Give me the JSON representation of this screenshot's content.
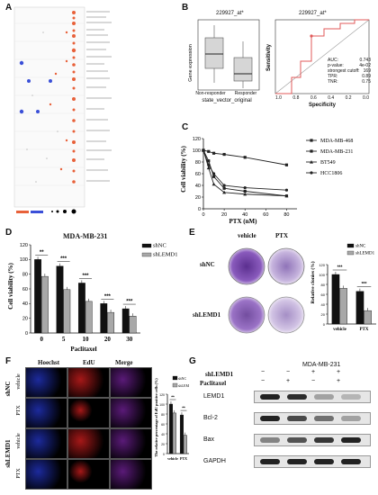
{
  "panels": {
    "A": "A",
    "B": "B",
    "C": "C",
    "D": "D",
    "E": "E",
    "F": "F",
    "G": "G"
  },
  "panelB": {
    "box_title": "229927_at*",
    "roc_title": "229927_at*",
    "ylabel": "Gene expression",
    "xgroup1": "Non-responder",
    "xgroup2": "Responder",
    "xlabel": "state_vector_original",
    "roc_ylabel": "Sensitivity",
    "roc_xlabel": "Specificity",
    "roc_xticks": [
      "1.0",
      "0.8",
      "0.6",
      "0.4",
      "0.2",
      "0.0"
    ],
    "stats": [
      {
        "k": "AUC:",
        "v": "0.743"
      },
      {
        "k": "p-value:",
        "v": "4e-02"
      },
      {
        "k": "strongest cutoff:",
        "v": "169"
      },
      {
        "k": "TPR:",
        "v": "0.89"
      },
      {
        "k": "TNR:",
        "v": "0.75"
      }
    ]
  },
  "chart_data": [
    {
      "type": "line",
      "panel": "C",
      "xlabel": "PTX (nM)",
      "ylabel": "Cell viability (%)",
      "x": [
        0,
        5,
        10,
        20,
        40,
        80
      ],
      "xticks": [
        0,
        20,
        40,
        60,
        80
      ],
      "yticks": [
        0,
        20,
        40,
        60,
        80,
        100,
        120
      ],
      "ylim": [
        0,
        120
      ],
      "series": [
        {
          "name": "MDA-MB-468",
          "values": [
            100,
            98,
            95,
            93,
            88,
            75
          ]
        },
        {
          "name": "MDA-MB-231",
          "values": [
            100,
            82,
            55,
            35,
            30,
            22
          ]
        },
        {
          "name": "BT549",
          "values": [
            100,
            70,
            42,
            28,
            25,
            22
          ]
        },
        {
          "name": "HCC1806",
          "values": [
            100,
            75,
            60,
            40,
            36,
            32
          ]
        }
      ]
    },
    {
      "type": "bar",
      "panel": "D",
      "title": "MDA-MB-231",
      "xlabel": "Paclitaxel",
      "ylabel": "Cell viability (%)",
      "categories": [
        "0",
        "5",
        "10",
        "20",
        "30"
      ],
      "yticks": [
        0,
        20,
        40,
        60,
        80,
        100,
        120
      ],
      "ylim": [
        0,
        120
      ],
      "series": [
        {
          "name": "shNC",
          "values": [
            100,
            91,
            68,
            40,
            33
          ]
        },
        {
          "name": "shLEMD1",
          "values": [
            77,
            59,
            43,
            28,
            23
          ]
        }
      ],
      "sig": [
        "**",
        "***",
        "***",
        "***",
        "***"
      ]
    },
    {
      "type": "bar",
      "panel": "E",
      "ylabel": "Relative clonies (%)",
      "categories": [
        "vehicle",
        "PTX"
      ],
      "yticks": [
        0,
        20,
        40,
        60,
        80,
        100,
        120
      ],
      "ylim": [
        0,
        120
      ],
      "series": [
        {
          "name": "shNC",
          "values": [
            100,
            66
          ]
        },
        {
          "name": "shLEMD1",
          "values": [
            72,
            27
          ]
        }
      ],
      "sig": [
        "***",
        "***"
      ]
    },
    {
      "type": "bar",
      "panel": "F",
      "ylabel": "The relative percentage of EdU positive cells (%)",
      "categories": [
        "vehicle",
        "PTX"
      ],
      "yticks": [
        0,
        20,
        40,
        60,
        80,
        100,
        120
      ],
      "ylim": [
        0,
        120
      ],
      "series": [
        {
          "name": "shNC",
          "values": [
            100,
            78
          ]
        },
        {
          "name": "shLEMD1",
          "values": [
            82,
            37
          ]
        }
      ],
      "sig": [
        "**",
        "**"
      ]
    }
  ],
  "panelE": {
    "col1": "vehicle",
    "col2": "PTX",
    "row1": "shNC",
    "row2": "shLEMD1"
  },
  "panelF": {
    "col1": "Hoechst",
    "col2": "EdU",
    "col3": "Merge",
    "grp1": "shNC",
    "grp2": "shLEMD1",
    "r1": "vehicle",
    "r2": "PTX",
    "r3": "vehicle",
    "r4": "PTX"
  },
  "panelG": {
    "title": "MDA-MB-231",
    "shLEMD1": "shLEMD1",
    "paclitaxel": "Paclitaxel",
    "sh_signs": [
      "−",
      "−",
      "+",
      "+"
    ],
    "ptx_signs": [
      "−",
      "+",
      "−",
      "+"
    ],
    "proteins": [
      "LEMD1",
      "Bcl-2",
      "Bax",
      "GAPDH"
    ]
  }
}
